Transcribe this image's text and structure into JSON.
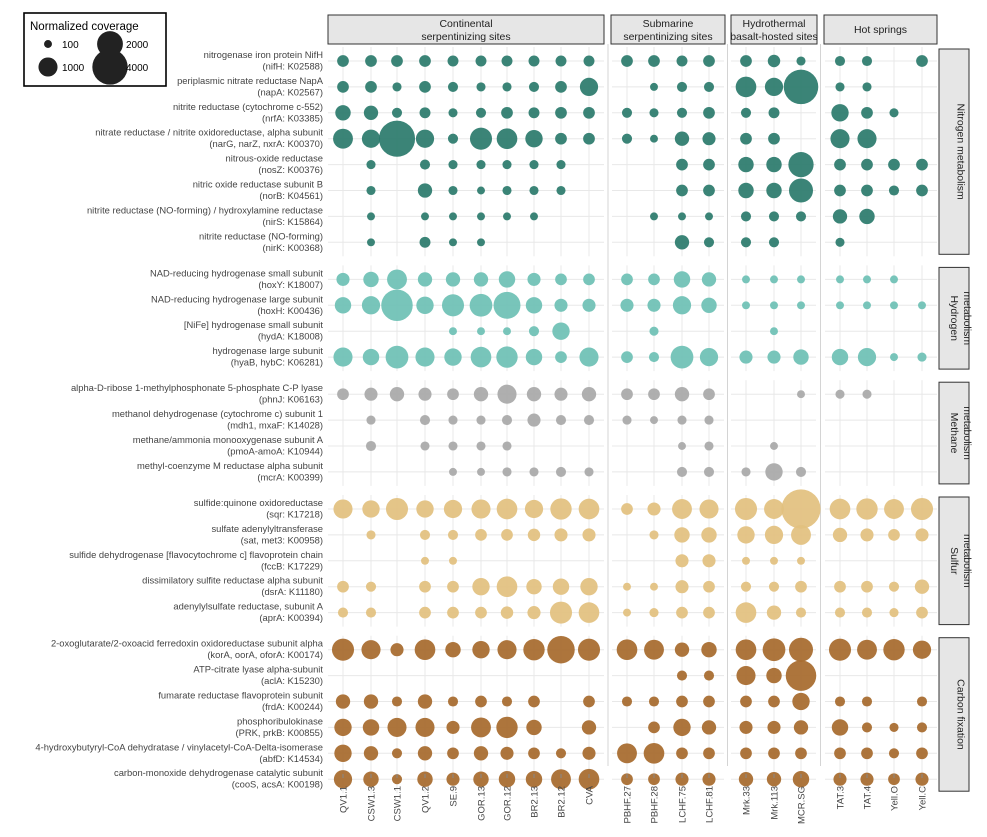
{
  "chart_data": {
    "type": "bubble",
    "title": "",
    "xlabel": "",
    "ylabel": "",
    "legend": {
      "title": "Normalized coverage",
      "entries": [
        100,
        1000,
        2000,
        4000
      ],
      "labels": [
        "100",
        "1000",
        "2000",
        "4000"
      ],
      "position": "top-left"
    },
    "size_max": 5000,
    "samples": [
      "QV1.1",
      "CSW1.3",
      "CSW1.1",
      "QV1.2",
      "SE.9",
      "GOR.13",
      "GOR.12",
      "BR2.13",
      "BR2.12",
      "CVA",
      "PBHF.27",
      "PBHF.28",
      "LCHF.75",
      "LCHF.81",
      "Mrk.33",
      "Mrk.113",
      "MCR.SG",
      "TAT.3",
      "TAT.4",
      "Yell.O",
      "Yell.C"
    ],
    "site_groups": [
      {
        "label": "Continental serpentinizing sites",
        "lines": [
          "Continental",
          "serpentinizing sites"
        ],
        "samples": 10
      },
      {
        "label": "Submarine serpentinizing sites",
        "lines": [
          "Submarine",
          "serpentinizing sites"
        ],
        "samples": 4
      },
      {
        "label": "Hydrothermal basalt-hosted sites",
        "lines": [
          "Hydrothermal",
          "basalt-hosted sites"
        ],
        "samples": 3
      },
      {
        "label": "Hot springs",
        "lines": [
          "Hot springs"
        ],
        "samples": 4
      }
    ],
    "metabolism_groups": [
      {
        "label": "Nitrogen metabolism",
        "lines": [
          "Nitrogen metabolism"
        ],
        "color": "#2a7a6b",
        "genes": [
          {
            "name": "nitrogenase iron protein NifH",
            "code": "(nifH: K02588)",
            "values": [
              300,
              300,
              300,
              300,
              250,
              250,
              250,
              250,
              250,
              250,
              300,
              300,
              250,
              300,
              300,
              350,
              150,
              200,
              200,
              0,
              300
            ]
          },
          {
            "name": "periplasmic nitrate reductase NapA",
            "code": "(napA: K02567)",
            "values": [
              300,
              300,
              150,
              300,
              200,
              150,
              150,
              200,
              300,
              900,
              0,
              100,
              200,
              200,
              1200,
              900,
              3800,
              150,
              150,
              0,
              0
            ]
          },
          {
            "name": "nitrite reductase (cytochrome c-552)",
            "code": "(nrfA: K03385)",
            "values": [
              600,
              500,
              200,
              250,
              150,
              200,
              300,
              250,
              300,
              300,
              200,
              150,
              200,
              300,
              200,
              250,
              0,
              800,
              300,
              150,
              0
            ]
          },
          {
            "name": "nitrate reductase / nitrite oxidoreductase, alpha subunit",
            "code": "(narG, narZ, nxrA: K00370)",
            "values": [
              1100,
              900,
              4200,
              900,
              200,
              1400,
              1200,
              800,
              300,
              300,
              200,
              100,
              500,
              400,
              300,
              300,
              0,
              1000,
              1000,
              0,
              0
            ]
          },
          {
            "name": "nitrous-oxide reductase",
            "code": "(nosZ: K00376)",
            "values": [
              0,
              150,
              0,
              200,
              150,
              150,
              150,
              150,
              150,
              0,
              0,
              0,
              300,
              300,
              600,
              600,
              1900,
              300,
              300,
              300,
              300
            ]
          },
          {
            "name": "nitric oxide reductase subunit B",
            "code": "(norB: K04561)",
            "values": [
              0,
              150,
              0,
              500,
              150,
              100,
              150,
              150,
              150,
              0,
              0,
              0,
              300,
              300,
              600,
              600,
              1700,
              300,
              300,
              200,
              300
            ]
          },
          {
            "name": "nitrite reductase (NO-forming) / hydroxylamine reductase",
            "code": "(nirS: K15864)",
            "values": [
              0,
              100,
              0,
              100,
              100,
              100,
              100,
              100,
              0,
              0,
              0,
              100,
              100,
              100,
              200,
              200,
              200,
              500,
              600,
              0,
              0
            ]
          },
          {
            "name": "nitrite reductase (NO-forming)",
            "code": "(nirK: K00368)",
            "values": [
              0,
              100,
              0,
              250,
              100,
              100,
              0,
              0,
              0,
              0,
              0,
              0,
              500,
              200,
              200,
              200,
              0,
              150,
              0,
              0,
              0
            ]
          }
        ]
      },
      {
        "label": "Hydrogen metabolism",
        "lines": [
          "Hydrogen",
          "metabolism"
        ],
        "color": "#6cc0b4",
        "genes": [
          {
            "name": "NAD-reducing hydrogenase small subunit",
            "code": "(hoxY: K18007)",
            "values": [
              400,
              600,
              1100,
              500,
              500,
              500,
              700,
              400,
              300,
              300,
              300,
              300,
              700,
              500,
              100,
              100,
              100,
              100,
              100,
              100,
              0
            ]
          },
          {
            "name": "NAD-reducing hydrogenase large subunit",
            "code": "(hoxH: K00436)",
            "values": [
              700,
              900,
              3100,
              800,
              1400,
              1500,
              2200,
              700,
              400,
              400,
              400,
              400,
              900,
              600,
              100,
              100,
              100,
              100,
              100,
              100,
              100
            ]
          },
          {
            "name": "[NiFe] hydrogenase small subunit",
            "code": "(hydA: K18008)",
            "values": [
              0,
              0,
              0,
              0,
              100,
              100,
              100,
              200,
              800,
              0,
              0,
              150,
              0,
              0,
              0,
              100,
              0,
              0,
              0,
              0,
              0
            ]
          },
          {
            "name": "hydrogenase large subunit",
            "code": "(hyaB, hybC: K06281)",
            "values": [
              1000,
              700,
              1500,
              1000,
              800,
              1200,
              1300,
              700,
              300,
              1000,
              300,
              200,
              1500,
              900,
              400,
              400,
              600,
              700,
              900,
              100,
              150
            ]
          }
        ]
      },
      {
        "label": "Methane metabolism",
        "lines": [
          "Methane",
          "metabolism"
        ],
        "color": "#a8a8a8",
        "genes": [
          {
            "name": "alpha-D-ribose 1-methylphosphonate 5-phosphate C-P lyase",
            "code": "(phnJ: K06163)",
            "values": [
              300,
              400,
              500,
              400,
              300,
              500,
              1000,
              500,
              400,
              500,
              300,
              300,
              500,
              300,
              0,
              0,
              100,
              150,
              150,
              0,
              0
            ]
          },
          {
            "name": "methanol dehydrogenase (cytochrome c) subunit 1",
            "code": "(mdh1, mxaF: K14028)",
            "values": [
              0,
              150,
              0,
              200,
              150,
              150,
              200,
              400,
              200,
              200,
              150,
              100,
              150,
              150,
              0,
              0,
              0,
              0,
              0,
              0,
              0
            ]
          },
          {
            "name": "methane/ammonia monooxygenase subunit A",
            "code": "(pmoA-amoA: K10944)",
            "values": [
              0,
              200,
              0,
              150,
              150,
              150,
              150,
              0,
              0,
              0,
              0,
              0,
              100,
              150,
              0,
              100,
              0,
              0,
              0,
              0,
              0
            ]
          },
          {
            "name": "methyl-coenzyme M reductase alpha subunit",
            "code": "(mcrA: K00399)",
            "values": [
              0,
              0,
              0,
              0,
              100,
              100,
              150,
              150,
              200,
              150,
              0,
              0,
              200,
              200,
              150,
              800,
              200,
              0,
              0,
              0,
              0
            ]
          }
        ]
      },
      {
        "label": "Sulfur metabolism",
        "lines": [
          "Sulfur",
          "metabolism"
        ],
        "color": "#e2c07e",
        "genes": [
          {
            "name": "sulfide:quinone oxidoreductase",
            "code": "(sqr: K17218)",
            "values": [
              1000,
              800,
              1400,
              800,
              900,
              1000,
              1200,
              900,
              1300,
              1200,
              300,
              400,
              1100,
              1000,
              1400,
              1100,
              5000,
              1200,
              1300,
              1100,
              1400
            ]
          },
          {
            "name": "sulfate adenylyltransferase",
            "code": "(sat, met3: K00958)",
            "values": [
              0,
              150,
              0,
              200,
              200,
              300,
              300,
              350,
              400,
              400,
              0,
              150,
              600,
              600,
              800,
              900,
              1100,
              500,
              400,
              300,
              400
            ]
          },
          {
            "name": "sulfide dehydrogenase [flavocytochrome c] flavoprotein chain",
            "code": "(fccB: K17229)",
            "values": [
              0,
              0,
              0,
              100,
              100,
              0,
              0,
              0,
              0,
              0,
              0,
              0,
              400,
              400,
              100,
              100,
              100,
              0,
              0,
              0,
              0
            ]
          },
          {
            "name": "dissimilatory sulfite reductase alpha subunit",
            "code": "(dsrA: K11180)",
            "values": [
              300,
              200,
              0,
              300,
              300,
              800,
              1200,
              600,
              700,
              800,
              100,
              100,
              400,
              300,
              200,
              200,
              300,
              300,
              300,
              200,
              500
            ]
          },
          {
            "name": "adenylylsulfate reductase, subunit A",
            "code": "(aprA: K00394)",
            "values": [
              200,
              200,
              0,
              300,
              300,
              300,
              350,
              400,
              1400,
              1200,
              100,
              150,
              300,
              300,
              1200,
              500,
              200,
              200,
              200,
              150,
              300
            ]
          }
        ]
      },
      {
        "label": "Carbon fixation",
        "lines": [
          "Carbon fixation"
        ],
        "color": "#a6692b",
        "genes": [
          {
            "name": "2-oxoglutarate/2-oxoacid ferredoxin oxidoreductase subunit alpha",
            "code": "(korA, oorA, oforA: K00174)",
            "values": [
              1400,
              1000,
              400,
              1200,
              600,
              800,
              1000,
              1300,
              2300,
              1400,
              1200,
              1100,
              500,
              600,
              1200,
              1500,
              1700,
              1400,
              1100,
              1300,
              900
            ]
          },
          {
            "name": "ATP-citrate lyase alpha-subunit",
            "code": "(aclA: K15230)",
            "values": [
              0,
              0,
              0,
              0,
              0,
              0,
              0,
              0,
              0,
              0,
              0,
              0,
              200,
              200,
              1000,
              600,
              2900,
              0,
              0,
              0,
              0
            ]
          },
          {
            "name": "fumarate reductase flavoprotein subunit",
            "code": "(frdA: K00244)",
            "values": [
              500,
              500,
              200,
              500,
              200,
              300,
              200,
              300,
              0,
              300,
              200,
              200,
              300,
              300,
              300,
              300,
              800,
              200,
              200,
              0,
              200
            ]
          },
          {
            "name": "phosphoribulokinase",
            "code": "(PRK, prkB: K00855)",
            "values": [
              800,
              700,
              1000,
              1000,
              400,
              1100,
              1300,
              600,
              0,
              500,
              0,
              300,
              800,
              500,
              400,
              400,
              500,
              700,
              200,
              150,
              200
            ]
          },
          {
            "name": "4-hydroxybutyryl-CoA dehydratase / vinylacetyl-CoA-Delta-isomerase",
            "code": "(abfD: K14534)",
            "values": [
              800,
              500,
              200,
              500,
              300,
              500,
              400,
              300,
              200,
              400,
              1100,
              1200,
              300,
              300,
              300,
              300,
              300,
              300,
              300,
              200,
              300
            ]
          },
          {
            "name": "carbon-monoxide dehydrogenase catalytic subunit",
            "code": "(cooS, acsA: K00198)",
            "values": [
              900,
              600,
              200,
              600,
              400,
              600,
              700,
              700,
              1100,
              1200,
              300,
              300,
              400,
              400,
              500,
              500,
              700,
              400,
              400,
              300,
              400
            ]
          }
        ]
      }
    ]
  }
}
